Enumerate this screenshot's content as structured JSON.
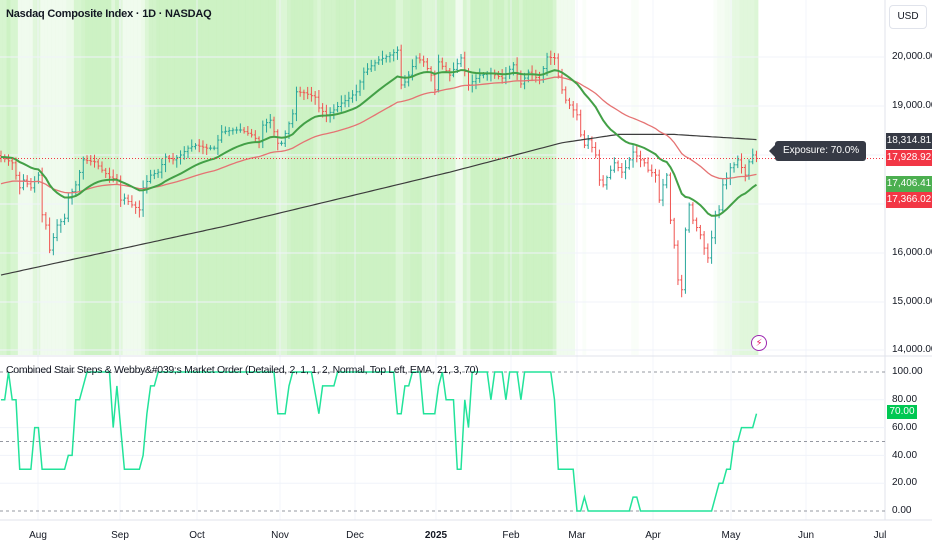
{
  "header": {
    "symbol_title": "Nasdaq Composite Index · 1D · NASDAQ",
    "currency": "USD"
  },
  "indicator": {
    "title": "Combined Stair Steps & Webby&#039;s Market Order (Detailed, 2, 1, 1, 2, Normal, Top Left, EMA, 21, 3, 70)"
  },
  "tooltip": {
    "exposure": "Exposure: 70.0%"
  },
  "price_axis": {
    "labels": [
      "20,000.00",
      "19,000.00",
      "16,000.00",
      "15,000.00",
      "14,000.00"
    ]
  },
  "price_tags": {
    "sma200": "18,314.81",
    "last_price": "17,928.92",
    "ema21": "17,406.41",
    "sma50": "17,366.02"
  },
  "exposure_axis": {
    "labels": [
      "100.00",
      "80.00",
      "60.00",
      "40.00",
      "20.00",
      "0.00"
    ],
    "current": "70.00"
  },
  "time_axis": {
    "labels": [
      "Aug",
      "Sep",
      "Oct",
      "Nov",
      "Dec",
      "2025",
      "Feb",
      "Mar",
      "Apr",
      "May",
      "Jun",
      "Jul"
    ]
  },
  "colors": {
    "up": "#26a69a",
    "down": "#ef5350",
    "ema21": "#43a047",
    "sma50": "#e57373",
    "sma200": "#3c3c3c",
    "exposure": "#22e39a",
    "band": "#9be58a",
    "tag_dark": "#363a45",
    "tag_red": "#f23645",
    "tag_green": "#4caf50"
  },
  "chart_data": [
    {
      "type": "ohlc",
      "title": "Nasdaq Composite Index · 1D · NASDAQ",
      "x_unit": "bar index",
      "ylim": [
        14000,
        21000
      ],
      "close_keypoints": [
        [
          0,
          17960
        ],
        [
          3,
          17840
        ],
        [
          5,
          17330
        ],
        [
          6,
          17490
        ],
        [
          8,
          17330
        ],
        [
          10,
          17590
        ],
        [
          11,
          16780
        ],
        [
          12,
          16570
        ],
        [
          13,
          16060
        ],
        [
          15,
          16570
        ],
        [
          17,
          16710
        ],
        [
          18,
          17120
        ],
        [
          20,
          17390
        ],
        [
          22,
          17900
        ],
        [
          25,
          17860
        ],
        [
          27,
          17690
        ],
        [
          29,
          17550
        ],
        [
          31,
          17490
        ],
        [
          32,
          17080
        ],
        [
          33,
          17120
        ],
        [
          35,
          16980
        ],
        [
          37,
          16880
        ],
        [
          38,
          17330
        ],
        [
          40,
          17590
        ],
        [
          42,
          17650
        ],
        [
          44,
          17960
        ],
        [
          46,
          17900
        ],
        [
          48,
          18000
        ],
        [
          50,
          18140
        ],
        [
          52,
          18200
        ],
        [
          55,
          18140
        ],
        [
          57,
          18140
        ],
        [
          59,
          18470
        ],
        [
          62,
          18510
        ],
        [
          64,
          18510
        ],
        [
          67,
          18410
        ],
        [
          69,
          18270
        ],
        [
          70,
          18610
        ],
        [
          72,
          18710
        ],
        [
          74,
          18240
        ],
        [
          75,
          18240
        ],
        [
          78,
          18840
        ],
        [
          79,
          19290
        ],
        [
          81,
          19270
        ],
        [
          84,
          19180
        ],
        [
          85,
          18960
        ],
        [
          87,
          18820
        ],
        [
          89,
          18920
        ],
        [
          91,
          19060
        ],
        [
          93,
          19160
        ],
        [
          95,
          19290
        ],
        [
          97,
          19690
        ],
        [
          99,
          19820
        ],
        [
          101,
          19940
        ],
        [
          104,
          20040
        ],
        [
          106,
          20140
        ],
        [
          107,
          19430
        ],
        [
          108,
          19490
        ],
        [
          109,
          19630
        ],
        [
          111,
          19980
        ],
        [
          113,
          19900
        ],
        [
          115,
          19630
        ],
        [
          116,
          19330
        ],
        [
          117,
          19900
        ],
        [
          120,
          19630
        ],
        [
          123,
          19980
        ],
        [
          125,
          19430
        ],
        [
          128,
          19630
        ],
        [
          131,
          19670
        ],
        [
          134,
          19570
        ],
        [
          137,
          19840
        ],
        [
          139,
          19450
        ],
        [
          141,
          19690
        ],
        [
          144,
          19530
        ],
        [
          146,
          20000
        ],
        [
          148,
          19980
        ],
        [
          149,
          19610
        ],
        [
          150,
          19330
        ],
        [
          151,
          19120
        ],
        [
          153,
          18920
        ],
        [
          154,
          18820
        ],
        [
          155,
          18410
        ],
        [
          156,
          18200
        ],
        [
          157,
          18310
        ],
        [
          159,
          18000
        ],
        [
          160,
          17490
        ],
        [
          161,
          17390
        ],
        [
          163,
          17690
        ],
        [
          164,
          17840
        ],
        [
          166,
          17650
        ],
        [
          167,
          17740
        ],
        [
          169,
          18060
        ],
        [
          171,
          17900
        ],
        [
          172,
          17840
        ],
        [
          173,
          17690
        ],
        [
          175,
          17590
        ],
        [
          176,
          17080
        ],
        [
          177,
          17390
        ],
        [
          178,
          17590
        ],
        [
          179,
          16670
        ],
        [
          180,
          16160
        ],
        [
          181,
          15450
        ],
        [
          182,
          15250
        ],
        [
          183,
          16470
        ],
        [
          184,
          16980
        ],
        [
          185,
          16670
        ],
        [
          187,
          16370
        ],
        [
          188,
          16100
        ],
        [
          189,
          15900
        ],
        [
          190,
          16310
        ],
        [
          191,
          16780
        ],
        [
          192,
          16880
        ],
        [
          193,
          17390
        ],
        [
          194,
          17530
        ],
        [
          195,
          17740
        ],
        [
          196,
          17800
        ],
        [
          197,
          17900
        ],
        [
          199,
          17590
        ],
        [
          200,
          17860
        ],
        [
          201,
          18000
        ],
        [
          202,
          17928.92
        ]
      ],
      "ema21_period": 21,
      "ema21_seed": 17960,
      "sma50_period": 50,
      "sma50_seed": 17390,
      "sma200_keypoints": [
        [
          0,
          15550
        ],
        [
          60,
          16550
        ],
        [
          120,
          17650
        ],
        [
          150,
          18250
        ],
        [
          165,
          18420
        ],
        [
          180,
          18420
        ],
        [
          202,
          18314.81
        ]
      ],
      "last_price": 17928.92
    },
    {
      "type": "line",
      "title": "Exposure",
      "ylim": [
        0,
        100
      ],
      "reference_lines": [
        100,
        50,
        0
      ],
      "exposure_keypoints": [
        [
          0,
          80
        ],
        [
          1,
          80
        ],
        [
          2,
          100
        ],
        [
          3,
          80
        ],
        [
          4,
          80
        ],
        [
          5,
          30
        ],
        [
          8,
          30
        ],
        [
          9,
          60
        ],
        [
          10,
          60
        ],
        [
          11,
          30
        ],
        [
          17,
          30
        ],
        [
          18,
          40
        ],
        [
          19,
          40
        ],
        [
          20,
          80
        ],
        [
          21,
          80
        ],
        [
          23,
          100
        ],
        [
          29,
          100
        ],
        [
          30,
          60
        ],
        [
          31,
          90
        ],
        [
          33,
          30
        ],
        [
          37,
          30
        ],
        [
          38,
          40
        ],
        [
          39,
          70
        ],
        [
          40,
          90
        ],
        [
          41,
          90
        ],
        [
          42,
          100
        ],
        [
          73,
          100
        ],
        [
          74,
          70
        ],
        [
          76,
          70
        ],
        [
          77,
          90
        ],
        [
          78,
          100
        ],
        [
          83,
          100
        ],
        [
          85,
          70
        ],
        [
          86,
          90
        ],
        [
          89,
          90
        ],
        [
          90,
          100
        ],
        [
          105,
          100
        ],
        [
          106,
          70
        ],
        [
          107,
          70
        ],
        [
          108,
          90
        ],
        [
          109,
          90
        ],
        [
          110,
          100
        ],
        [
          112,
          100
        ],
        [
          113,
          70
        ],
        [
          116,
          70
        ],
        [
          117,
          90
        ],
        [
          118,
          100
        ],
        [
          119,
          80
        ],
        [
          121,
          80
        ],
        [
          122,
          30
        ],
        [
          123,
          30
        ],
        [
          124,
          80
        ],
        [
          125,
          60
        ],
        [
          126,
          100
        ],
        [
          130,
          100
        ],
        [
          131,
          80
        ],
        [
          132,
          100
        ],
        [
          134,
          100
        ],
        [
          135,
          80
        ],
        [
          136,
          100
        ],
        [
          138,
          100
        ],
        [
          139,
          80
        ],
        [
          140,
          100
        ],
        [
          147,
          100
        ],
        [
          148,
          80
        ],
        [
          149,
          30
        ],
        [
          153,
          30
        ],
        [
          154,
          0
        ],
        [
          155,
          0
        ],
        [
          156,
          10
        ],
        [
          157,
          0
        ],
        [
          168,
          0
        ],
        [
          169,
          10
        ],
        [
          170,
          10
        ],
        [
          171,
          0
        ],
        [
          190,
          0
        ],
        [
          192,
          20
        ],
        [
          193,
          20
        ],
        [
          194,
          30
        ],
        [
          195,
          30
        ],
        [
          196,
          50
        ],
        [
          197,
          50
        ],
        [
          198,
          60
        ],
        [
          201,
          60
        ],
        [
          202,
          70
        ]
      ]
    }
  ]
}
